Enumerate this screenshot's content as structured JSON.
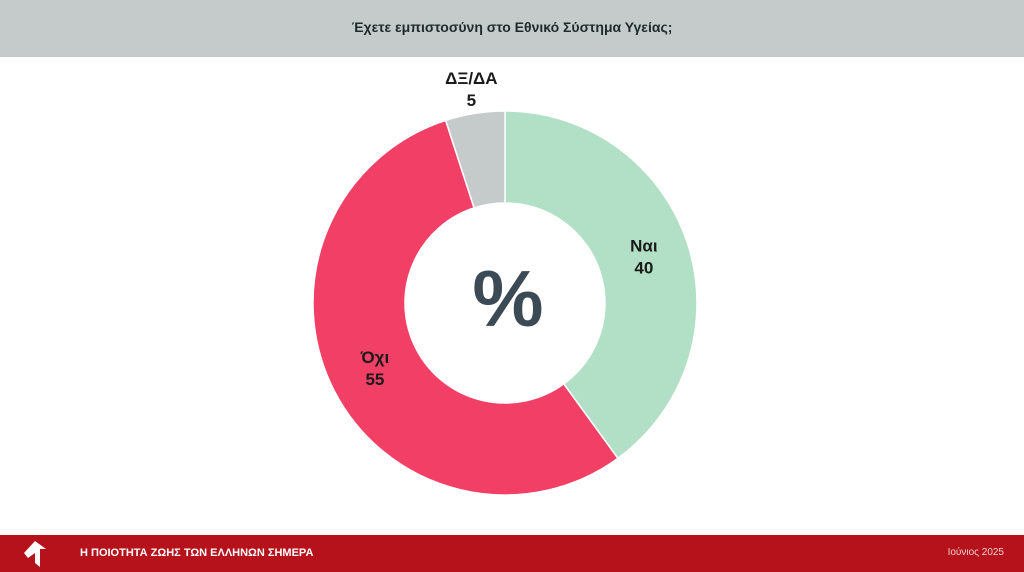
{
  "chart_data": {
    "type": "donut",
    "title": "Έχετε εμπιστοσύνη στο Εθνικό Σύστημα Υγείας;",
    "center_label": "%",
    "categories": [
      "Ναι",
      "Όχι",
      "ΔΞ/ΔΑ"
    ],
    "values": [
      40,
      55,
      5
    ],
    "colors": [
      "#b2e0c6",
      "#f23f66",
      "#c5cbcb"
    ]
  },
  "footer": {
    "title": "Η ΠΟΙΟΤΗΤΑ ΖΩΗΣ ΤΩΝ ΕΛΛΗΝΩΝ ΣΗΜΕΡΑ",
    "date": "Ιούνιος 2025"
  }
}
